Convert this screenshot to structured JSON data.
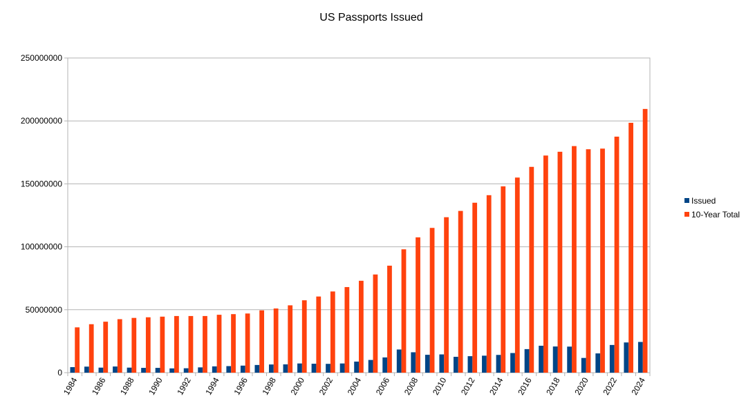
{
  "chart_data": {
    "type": "bar",
    "title": "US Passports Issued",
    "xlabel": "",
    "ylabel": "",
    "ylim": [
      0,
      250000000
    ],
    "yticks": [
      "0",
      "50000000",
      "100000000",
      "150000000",
      "200000000",
      "250000000"
    ],
    "grid": true,
    "legend_position": "right",
    "categories": [
      1984,
      1985,
      1986,
      1987,
      1988,
      1989,
      1990,
      1991,
      1992,
      1993,
      1994,
      1995,
      1996,
      1997,
      1998,
      1999,
      2000,
      2001,
      2002,
      2003,
      2004,
      2005,
      2006,
      2007,
      2008,
      2009,
      2010,
      2011,
      2012,
      2013,
      2014,
      2015,
      2016,
      2017,
      2018,
      2019,
      2020,
      2021,
      2022,
      2023,
      2024
    ],
    "xtick_labels": [
      "1984",
      "1986",
      "1988",
      "1990",
      "1992",
      "1994",
      "1996",
      "1998",
      "2000",
      "2002",
      "2004",
      "2006",
      "2008",
      "2010",
      "2012",
      "2014",
      "2016",
      "2018",
      "2020",
      "2022",
      "2024"
    ],
    "series": [
      {
        "name": "Issued",
        "color": "#004586",
        "values": [
          4400000,
          4800000,
          4000000,
          4900000,
          4000000,
          3800000,
          3800000,
          3400000,
          3500000,
          4200000,
          5000000,
          5200000,
          5600000,
          6100000,
          6500000,
          6600000,
          7300000,
          7100000,
          7000000,
          7300000,
          8800000,
          10100000,
          12100000,
          18400000,
          16200000,
          14200000,
          14500000,
          12600000,
          13100000,
          13500000,
          14100000,
          15600000,
          18700000,
          21400000,
          20800000,
          20700000,
          11700000,
          15300000,
          22000000,
          24000000,
          24400000
        ]
      },
      {
        "name": "10-Year Total",
        "color": "#ff420e",
        "values": [
          36000000,
          38500000,
          40500000,
          42500000,
          43500000,
          44000000,
          44500000,
          45000000,
          45000000,
          45000000,
          46000000,
          46500000,
          47000000,
          49500000,
          51000000,
          53500000,
          57500000,
          60500000,
          64500000,
          68000000,
          73000000,
          78000000,
          85000000,
          98000000,
          107500000,
          115000000,
          123500000,
          128500000,
          135000000,
          141000000,
          148000000,
          155000000,
          163500000,
          172500000,
          175500000,
          180000000,
          177500000,
          178000000,
          187500000,
          198500000,
          209500000
        ]
      }
    ]
  }
}
